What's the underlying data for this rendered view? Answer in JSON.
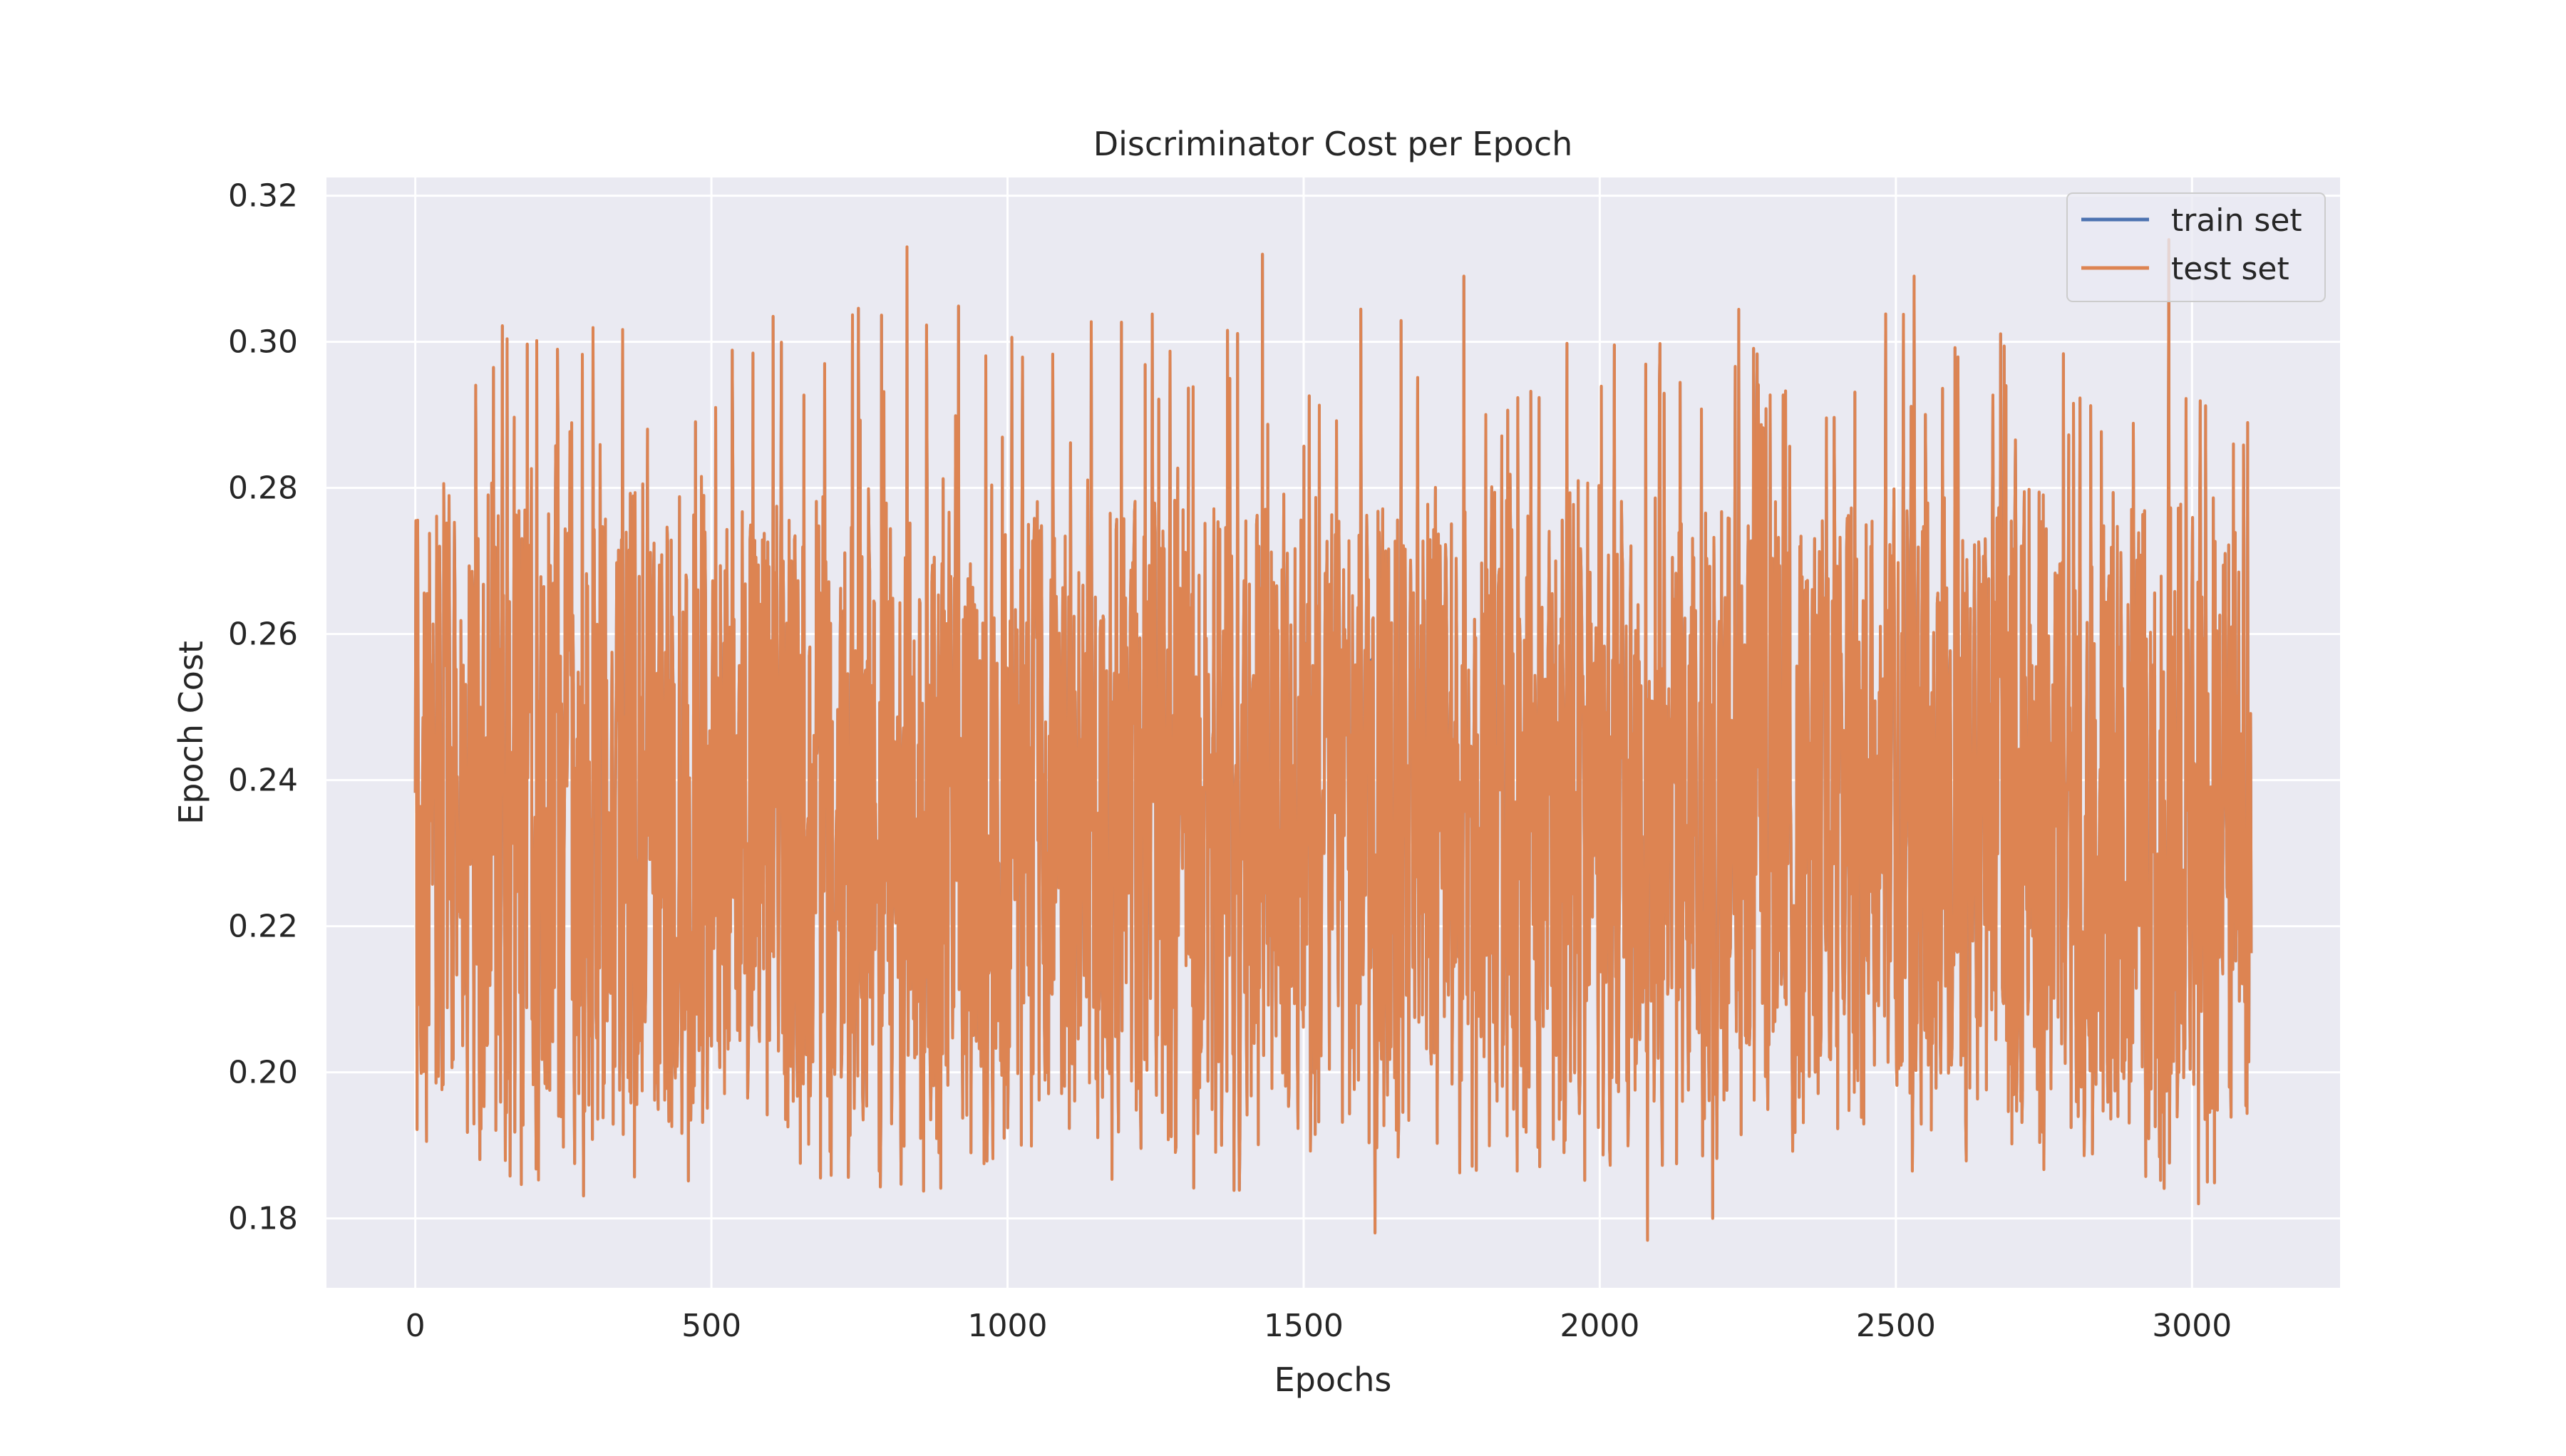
{
  "chart_data": {
    "type": "line",
    "title": "Discriminator Cost per Epoch",
    "xlabel": "Epochs",
    "ylabel": "Epoch Cost",
    "xlim": [
      -150,
      3250
    ],
    "ylim": [
      0.1705,
      0.3225
    ],
    "xticks": [
      0,
      500,
      1000,
      1500,
      2000,
      2500,
      3000
    ],
    "xtick_labels": [
      "0",
      "500",
      "1000",
      "1500",
      "2000",
      "2500",
      "3000"
    ],
    "yticks": [
      0.18,
      0.2,
      0.22,
      0.24,
      0.26,
      0.28,
      0.3,
      0.32
    ],
    "ytick_labels": [
      "0.18",
      "0.20",
      "0.22",
      "0.24",
      "0.26",
      "0.28",
      "0.30",
      "0.32"
    ],
    "grid": true,
    "legend_position": "top-right",
    "series": [
      {
        "name": "train set",
        "color": "#4c72b0",
        "x_range": [
          0,
          3100
        ],
        "points": 3100,
        "value_range": [
          0.177,
          0.313
        ]
      },
      {
        "name": "test set",
        "color": "#dd8452",
        "x_range": [
          0,
          3100
        ],
        "points": 3100,
        "value_range": [
          0.177,
          0.313
        ],
        "approx_mean": 0.235,
        "notable_peaks": [
          {
            "x": 830,
            "y": 0.313
          },
          {
            "x": 1430,
            "y": 0.312
          },
          {
            "x": 2960,
            "y": 0.314
          },
          {
            "x": 2530,
            "y": 0.309
          },
          {
            "x": 1770,
            "y": 0.309
          }
        ],
        "notable_troughs": [
          {
            "x": 1620,
            "y": 0.178
          },
          {
            "x": 2080,
            "y": 0.177
          },
          {
            "x": 2190,
            "y": 0.18
          },
          {
            "x": 3010,
            "y": 0.182
          }
        ]
      }
    ]
  }
}
